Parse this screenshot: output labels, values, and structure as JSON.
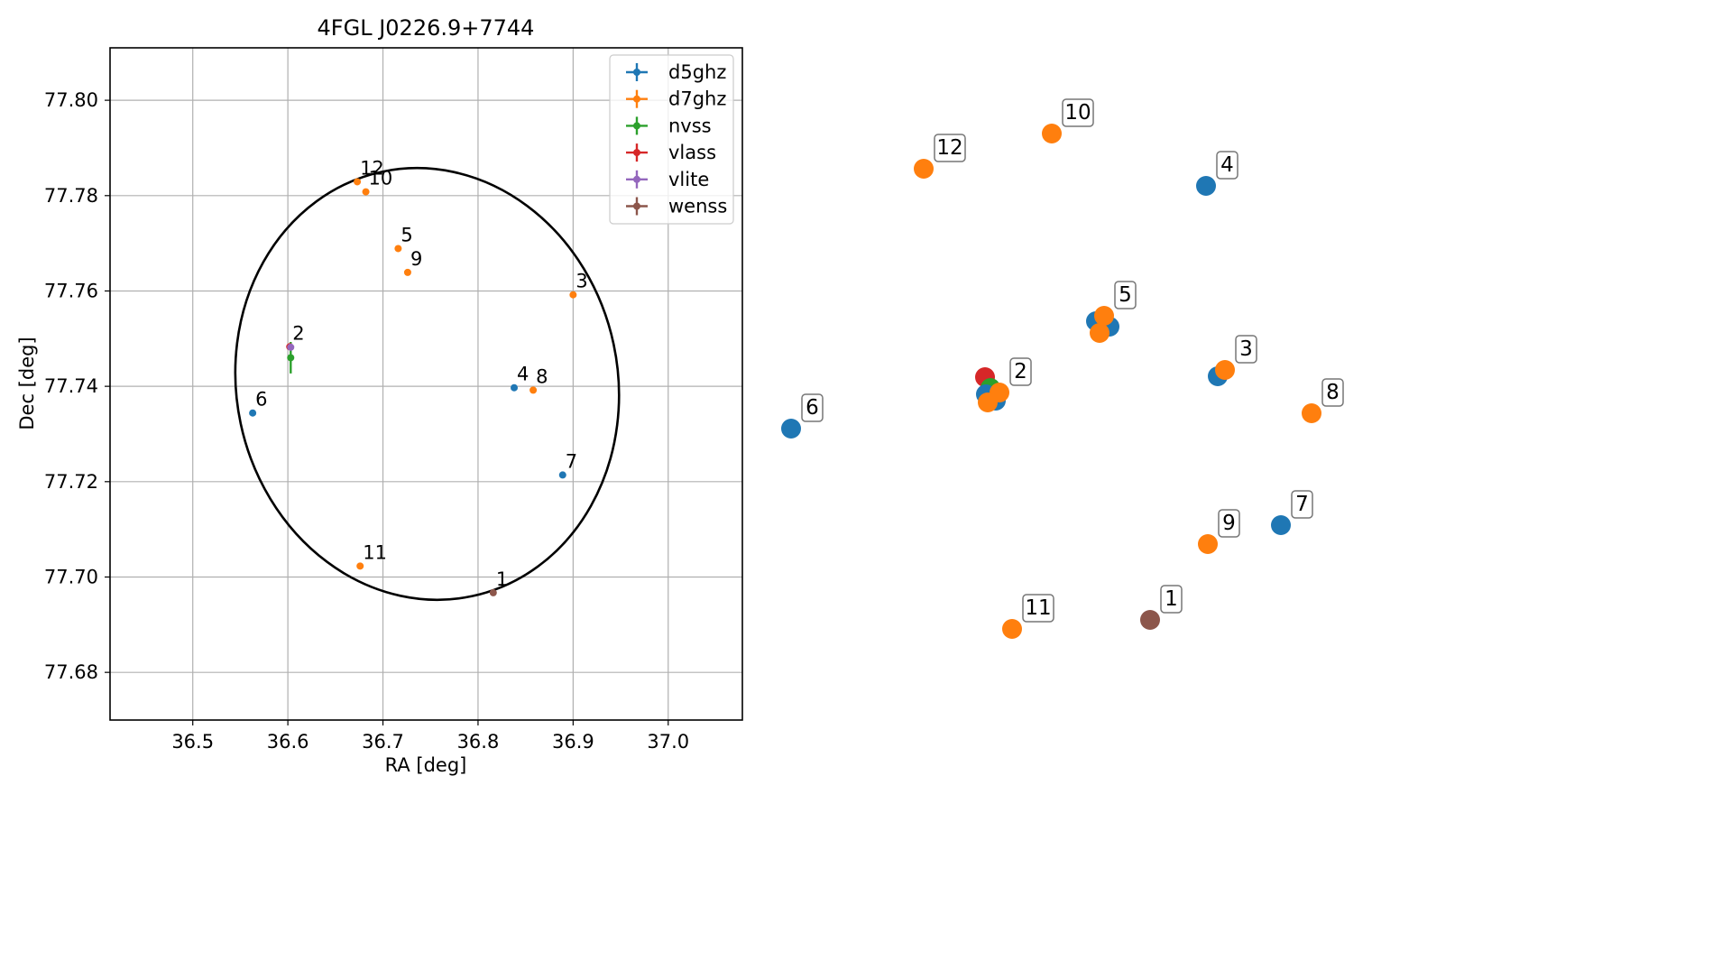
{
  "chart_data": [
    {
      "type": "scatter",
      "title": "4FGL J0226.9+7744",
      "xlabel": "RA [deg]",
      "ylabel": "Dec [deg]",
      "xlim": [
        36.413,
        37.078
      ],
      "ylim": [
        77.67,
        77.811
      ],
      "x_ticks": [
        "36.5",
        "36.6",
        "36.7",
        "36.8",
        "36.9",
        "37.0"
      ],
      "y_ticks": [
        "77.68",
        "77.70",
        "77.72",
        "77.74",
        "77.76",
        "77.78",
        "77.80"
      ],
      "grid": true,
      "legend_position": "top-right",
      "ellipse": {
        "center_ra": 36.7465,
        "center_dec": 77.7405,
        "half_width_ra": 0.2005,
        "half_height_dec": 0.0455,
        "tilt_deg": -12,
        "color": "#000000"
      },
      "series": [
        {
          "name": "d5ghz",
          "color": "#1f77b4",
          "points": [
            {
              "label": "4",
              "ra": 36.838,
              "dec": 77.7397
            },
            {
              "label": "6",
              "ra": 36.563,
              "dec": 77.7344
            },
            {
              "label": "7",
              "ra": 36.889,
              "dec": 77.7214
            }
          ]
        },
        {
          "name": "d7ghz",
          "color": "#ff7f0e",
          "points": [
            {
              "label": "12",
              "ra": 36.673,
              "dec": 77.7829
            },
            {
              "label": "10",
              "ra": 36.682,
              "dec": 77.7808
            },
            {
              "label": "5",
              "ra": 36.716,
              "dec": 77.7689
            },
            {
              "label": "9",
              "ra": 36.726,
              "dec": 77.7639
            },
            {
              "label": "3",
              "ra": 36.9,
              "dec": 77.7592
            },
            {
              "label": "8",
              "ra": 36.858,
              "dec": 77.7392
            },
            {
              "label": "11",
              "ra": 36.676,
              "dec": 77.7023
            }
          ]
        },
        {
          "name": "nvss",
          "color": "#2ca02c",
          "points": [
            {
              "label": "",
              "ra": 36.603,
              "dec": 77.746,
              "dec_err": 0.0033
            }
          ]
        },
        {
          "name": "vlass",
          "color": "#d62728",
          "points": [
            {
              "label": "2",
              "ra": 36.602,
              "dec": 77.7483
            }
          ]
        },
        {
          "name": "vlite",
          "color": "#9467bd",
          "points": [
            {
              "label": "",
              "ra": 36.603,
              "dec": 77.7482
            }
          ]
        },
        {
          "name": "wenss",
          "color": "#8c564b",
          "points": [
            {
              "label": "1",
              "ra": 36.816,
              "dec": 77.6967
            }
          ]
        }
      ]
    },
    {
      "type": "scatter",
      "grid": false,
      "markers": [
        {
          "label": "12",
          "color": "#ff7f0e",
          "x": 1024,
          "y": 187,
          "show_label": true
        },
        {
          "label": "10",
          "color": "#ff7f0e",
          "x": 1166,
          "y": 148,
          "show_label": true
        },
        {
          "label": "4",
          "color": "#1f77b4",
          "x": 1337,
          "y": 206,
          "show_label": true
        },
        {
          "label": "5",
          "color": "#1f77b4",
          "x": 1215,
          "y": 356,
          "show_label": false
        },
        {
          "label": "5",
          "color": "#1f77b4",
          "x": 1230,
          "y": 362,
          "show_label": false
        },
        {
          "label": "5",
          "color": "#ff7f0e",
          "x": 1219,
          "y": 369,
          "show_label": false
        },
        {
          "label": "5",
          "color": "#ff7f0e",
          "x": 1224,
          "y": 350,
          "show_label": true
        },
        {
          "label": "3",
          "color": "#1f77b4",
          "x": 1350,
          "y": 417,
          "show_label": false
        },
        {
          "label": "3",
          "color": "#ff7f0e",
          "x": 1358,
          "y": 410,
          "show_label": true
        },
        {
          "label": "8",
          "color": "#ff7f0e",
          "x": 1454,
          "y": 458,
          "show_label": true
        },
        {
          "label": "6",
          "color": "#1f77b4",
          "x": 877,
          "y": 475,
          "show_label": true
        },
        {
          "label": "2",
          "color": "#d62728",
          "x": 1092,
          "y": 418,
          "show_label": false
        },
        {
          "label": "2",
          "color": "#2ca02c",
          "x": 1098,
          "y": 430,
          "show_label": false
        },
        {
          "label": "2",
          "color": "#1f77b4",
          "x": 1104,
          "y": 444,
          "show_label": false
        },
        {
          "label": "2",
          "color": "#1f77b4",
          "x": 1093,
          "y": 437,
          "show_label": false
        },
        {
          "label": "2",
          "color": "#ff7f0e",
          "x": 1108,
          "y": 435,
          "show_label": true
        },
        {
          "label": "2",
          "color": "#ff7f0e",
          "x": 1095,
          "y": 446,
          "show_label": false
        },
        {
          "label": "7",
          "color": "#1f77b4",
          "x": 1420,
          "y": 582,
          "show_label": true
        },
        {
          "label": "9",
          "color": "#ff7f0e",
          "x": 1339,
          "y": 603,
          "show_label": true
        },
        {
          "label": "1",
          "color": "#8c564b",
          "x": 1275,
          "y": 687,
          "show_label": true
        },
        {
          "label": "11",
          "color": "#ff7f0e",
          "x": 1122,
          "y": 697,
          "show_label": true
        }
      ]
    }
  ]
}
